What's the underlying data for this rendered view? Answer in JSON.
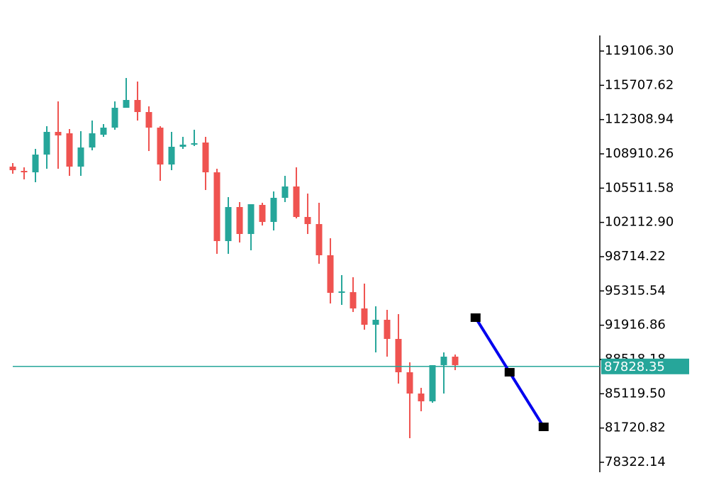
{
  "chart_data": {
    "type": "candlestick",
    "up_color": "#26a69a",
    "down_color": "#ef5350",
    "x": [
      0,
      1,
      2,
      3,
      4,
      5,
      6,
      7,
      8,
      9,
      10,
      11,
      12,
      13,
      14,
      15,
      16,
      17,
      18,
      19,
      20,
      21,
      22,
      23,
      24,
      25,
      26,
      27,
      28,
      29,
      30,
      31,
      32,
      33,
      34,
      35,
      36,
      37,
      38,
      39
    ],
    "open": [
      107644,
      107222,
      107081,
      108839,
      111089,
      110949,
      107644,
      109542,
      110808,
      111511,
      113480,
      114254,
      113058,
      111511,
      107855,
      109613,
      109824,
      110035,
      107081,
      100260,
      103636,
      100963,
      103847,
      102159,
      104550,
      105675,
      102651,
      101948,
      98854,
      95127,
      95197,
      93580,
      91962,
      92455,
      90556,
      87251,
      85141,
      84368,
      87954,
      88798
    ],
    "high": [
      107995,
      107573,
      109402,
      111652,
      114113,
      111371,
      111160,
      112215,
      111863,
      114113,
      116434,
      116082,
      113621,
      111652,
      111089,
      110597,
      111300,
      110597,
      107433,
      104620,
      104128,
      103917,
      104057,
      105183,
      106730,
      107573,
      104972,
      104057,
      100541,
      96885,
      96674,
      96041,
      93791,
      93439,
      93017,
      88235,
      85704,
      87954,
      89220,
      89009
    ],
    "low": [
      106941,
      106378,
      106097,
      107433,
      107433,
      106730,
      106730,
      109261,
      110597,
      111300,
      113480,
      112215,
      109191,
      106237,
      107292,
      109402,
      109683,
      105323,
      98994,
      98994,
      100120,
      99346,
      101807,
      101315,
      104128,
      102510,
      100963,
      98010,
      94072,
      93931,
      93228,
      91470,
      89220,
      88798,
      86126,
      80711,
      83383,
      84227,
      85141,
      87462
    ],
    "close": [
      107292,
      107081,
      108839,
      111089,
      110738,
      107644,
      109542,
      110949,
      111511,
      113480,
      114254,
      113058,
      111511,
      107855,
      109613,
      109824,
      109964,
      107081,
      100260,
      103636,
      100963,
      103917,
      102159,
      104550,
      105675,
      102651,
      101948,
      98854,
      95127,
      95267,
      93580,
      91962,
      92455,
      90556,
      87251,
      85141,
      84368,
      87954,
      88798,
      87954
    ],
    "xlim": [
      -1.125,
      51.69
    ],
    "ylim": [
      77197,
      120653
    ],
    "yticks": [
      {
        "value": 119106.3,
        "label": "119106.30"
      },
      115707.62,
      112308.94,
      108910.26,
      105511.58,
      {
        "value": 102112.9,
        "label": "102112.90"
      },
      98714.22,
      95315.54,
      91916.86,
      88518.18,
      {
        "value": 85119.5,
        "label": "85119.50"
      },
      81720.82,
      78322.14
    ],
    "last_price": 87828.35,
    "last_price_color": "#26a69a",
    "overlay": {
      "type": "line",
      "color": "#0000ee",
      "x": [
        40.8,
        43.8,
        46.8
      ],
      "values": [
        92666,
        87251,
        81836
      ]
    }
  }
}
